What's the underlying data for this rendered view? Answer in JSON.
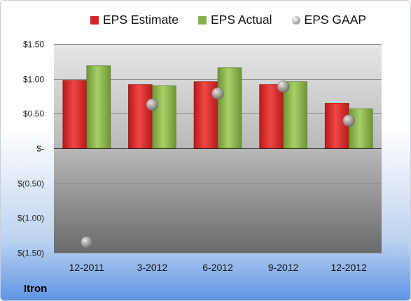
{
  "company": "Itron",
  "chart_data": {
    "type": "bar",
    "categories": [
      "12-2011",
      "3-2012",
      "6-2012",
      "9-2012",
      "12-2012"
    ],
    "series": [
      {
        "name": "EPS Estimate",
        "type": "bar",
        "color": "#d42626",
        "values": [
          0.98,
          0.92,
          0.96,
          0.92,
          0.65
        ]
      },
      {
        "name": "EPS Actual",
        "type": "bar",
        "color": "#88b04a",
        "values": [
          1.19,
          0.9,
          1.16,
          0.96,
          0.57
        ]
      },
      {
        "name": "EPS GAAP",
        "type": "scatter",
        "color": "#9a9a9a",
        "values": [
          -1.35,
          0.63,
          0.79,
          0.89,
          0.4
        ]
      }
    ],
    "ylim": [
      -1.5,
      1.5
    ],
    "yticks": [
      {
        "value": 1.5,
        "label": "$1.50"
      },
      {
        "value": 1.0,
        "label": "$1.00"
      },
      {
        "value": 0.5,
        "label": "$0.50"
      },
      {
        "value": 0,
        "label": "$-"
      },
      {
        "value": -0.5,
        "label": "$(0.50)"
      },
      {
        "value": -1.0,
        "label": "$(1.00)"
      },
      {
        "value": -1.5,
        "label": "$(1.50)"
      }
    ],
    "grid": true,
    "legend_position": "top"
  }
}
